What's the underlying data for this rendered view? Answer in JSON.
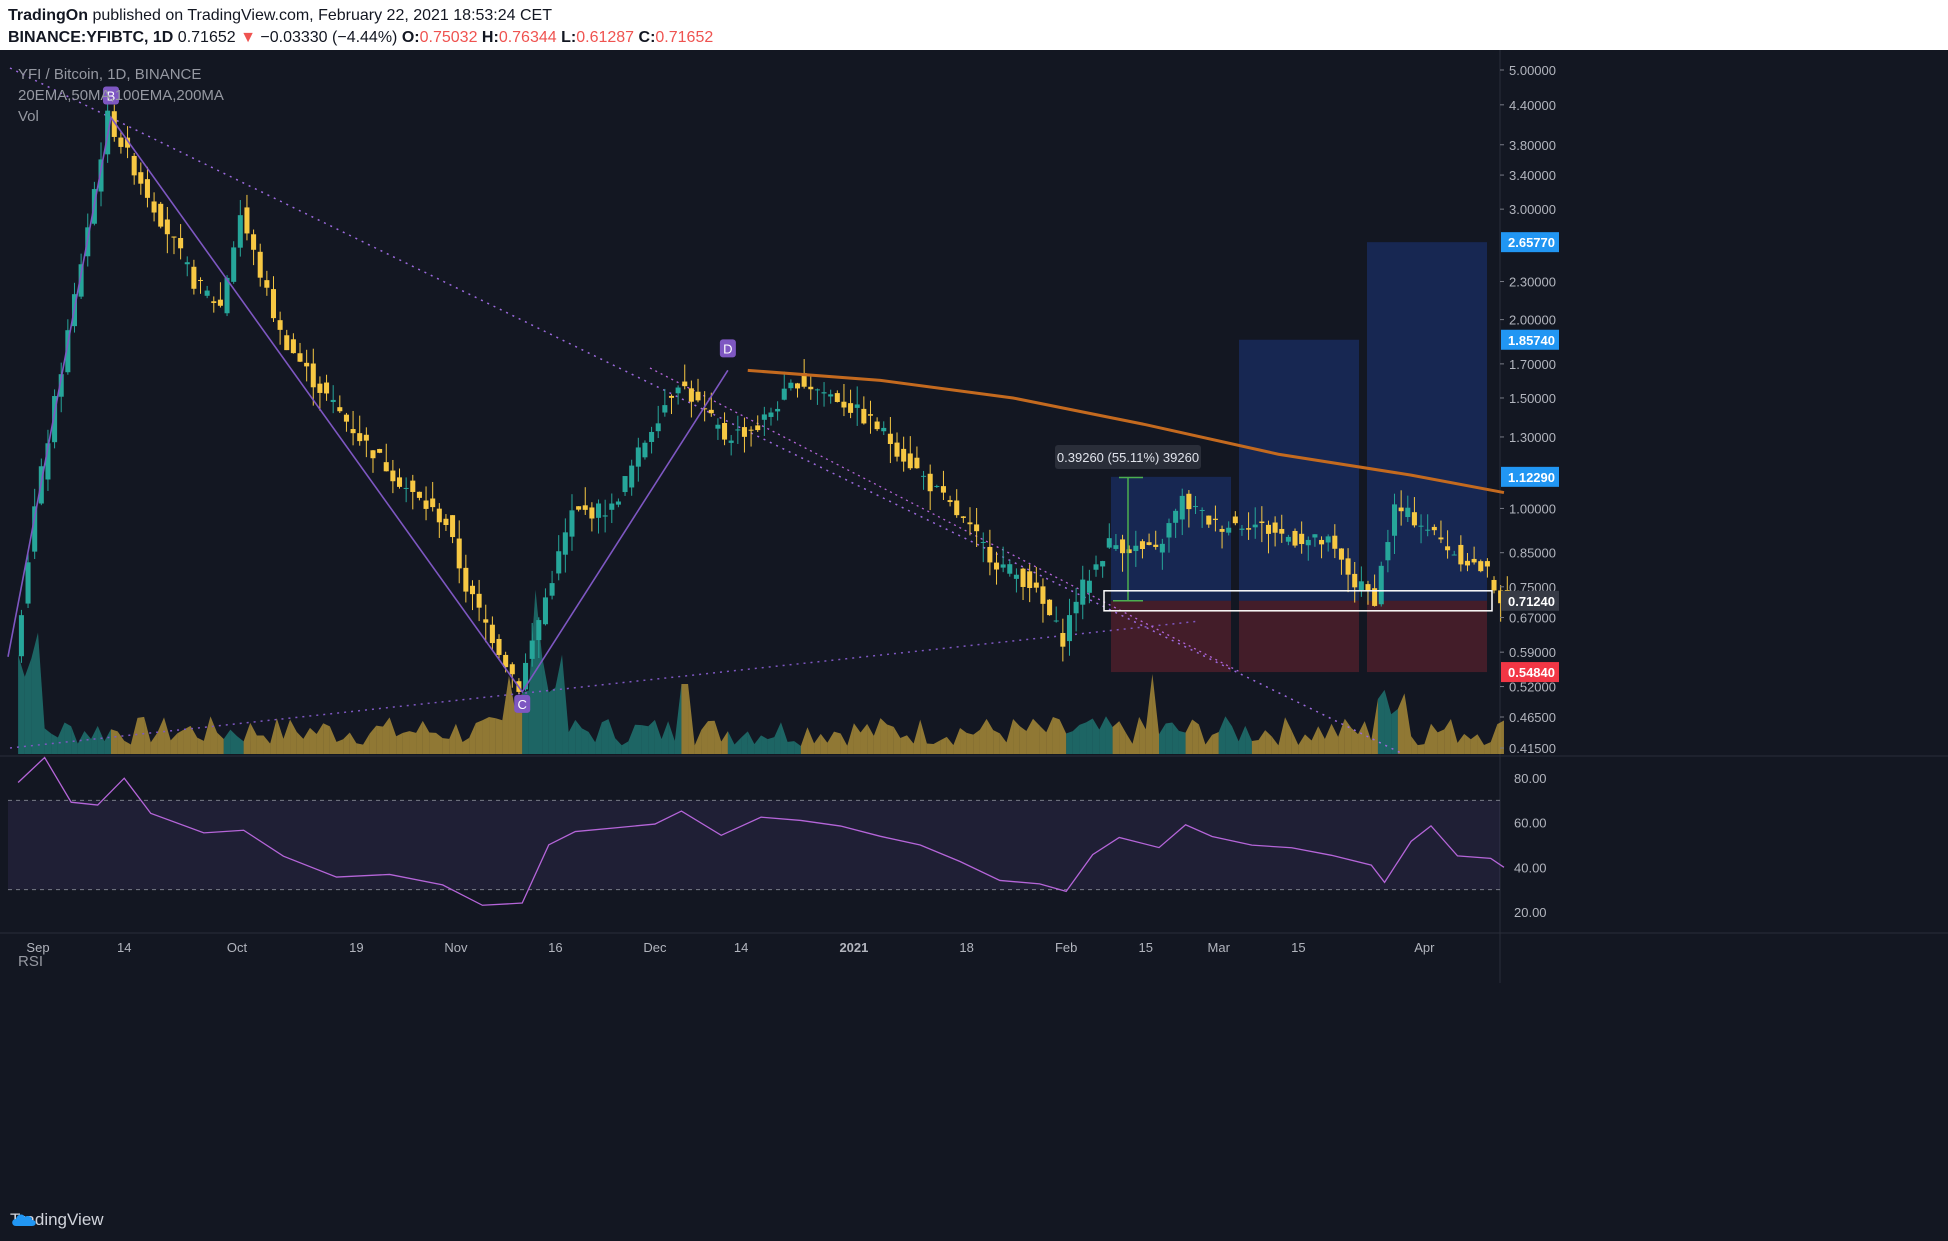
{
  "header": {
    "publisher": "TradingOn",
    "published_text": " published on TradingView.com, February 22, 2021 18:53:24 CET",
    "symbol": "BINANCE:YFIBTC, 1D",
    "last": "0.71652",
    "change": "−0.03330 (−4.44%)",
    "open_label": "O:",
    "open": "0.75032",
    "high_label": "H:",
    "high": "0.76344",
    "low_label": "L:",
    "low": "0.61287",
    "close_label": "C:",
    "close": "0.71652"
  },
  "legend": {
    "title": "YFI / Bitcoin, 1D, BINANCE",
    "indicators": "20EMA,50MA,100EMA,200MA",
    "volume": "Vol",
    "rsi": "RSI"
  },
  "chart_data": {
    "type": "candlestick",
    "y_scale": "log",
    "ylim": [
      0.4,
      5.3
    ],
    "price_ticks": [
      "5.00000",
      "4.40000",
      "3.80000",
      "3.40000",
      "3.00000",
      "2.65770",
      "2.30000",
      "2.00000",
      "1.85740",
      "1.70000",
      "1.50000",
      "1.30000",
      "1.12290",
      "1.00000",
      "0.85000",
      "0.75000",
      "0.71240",
      "0.67000",
      "0.59000",
      "0.54840",
      "0.52000",
      "0.46500",
      "0.41500"
    ],
    "price_tick_values": [
      5.0,
      4.4,
      3.8,
      3.4,
      3.0,
      2.6577,
      2.3,
      2.0,
      1.8574,
      1.7,
      1.5,
      1.3,
      1.1229,
      1.0,
      0.85,
      0.75,
      0.7124,
      0.67,
      0.59,
      0.5484,
      0.52,
      0.465,
      0.415
    ],
    "x_labels": [
      "Sep",
      "14",
      "Oct",
      "19",
      "Nov",
      "16",
      "Dec",
      "14",
      "2021",
      "18",
      "Feb",
      "15",
      "Mar",
      "15",
      "Apr"
    ],
    "pattern_points": [
      {
        "label": "B"
      },
      {
        "label": "C"
      },
      {
        "label": "D"
      }
    ],
    "measure_label": "0.39260 (55.11%) 39260",
    "price_badges": [
      {
        "value": "2.65770",
        "color": "#2196f3"
      },
      {
        "value": "1.85740",
        "color": "#2196f3"
      },
      {
        "value": "1.12290",
        "color": "#2196f3"
      },
      {
        "value": "0.71240",
        "color": "#363a45"
      },
      {
        "value": "0.54840",
        "color": "#f23645"
      }
    ],
    "targets": [
      {
        "entry": 0.7124,
        "target": 1.1229,
        "stop": 0.5484
      },
      {
        "entry": 0.7124,
        "target": 1.8574,
        "stop": 0.5484
      },
      {
        "entry": 0.7124,
        "target": 2.6577,
        "stop": 0.5484
      }
    ],
    "ma200_color": "#c46a1f",
    "rsi_ticks": [
      "80.00",
      "60.00",
      "40.00",
      "20.00"
    ],
    "rsi_levels": [
      70,
      30
    ],
    "up_color": "#26a69a",
    "down_color": "#f7c843"
  },
  "footer": {
    "brand": "TradingView"
  }
}
